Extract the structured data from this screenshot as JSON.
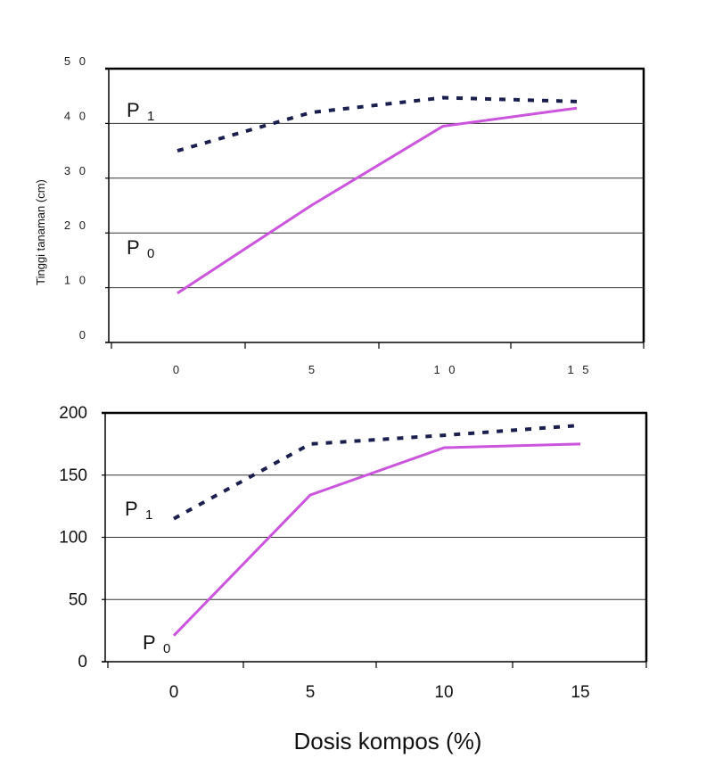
{
  "chart_data": [
    {
      "type": "line",
      "categories": [
        "0",
        "5",
        "10",
        "15"
      ],
      "ylabel": "Tinggi tanaman (cm)",
      "ylim": [
        0,
        50
      ],
      "yticks": [
        "0",
        "1 0",
        "2 0",
        "3 0",
        "4 0",
        "5 0"
      ],
      "xticks": [
        "0",
        "5",
        "1 0",
        "1 5"
      ],
      "grid": true,
      "series": [
        {
          "name": "P1",
          "base": "P",
          "sub": "1",
          "style": "dashed",
          "color": "#1a1f4d",
          "values": [
            35,
            42,
            44.7,
            44
          ]
        },
        {
          "name": "P0",
          "base": "P",
          "sub": "0",
          "style": "solid",
          "color": "#cc55dd",
          "values": [
            9,
            25,
            39.5,
            42.8
          ]
        }
      ]
    },
    {
      "type": "line",
      "categories": [
        "0",
        "5",
        "10",
        "15"
      ],
      "xlabel": "Dosis kompos (%)",
      "ylim": [
        0,
        200
      ],
      "yticks": [
        "0",
        "50",
        "100",
        "150",
        "200"
      ],
      "xticks": [
        "0",
        "5",
        "10",
        "15"
      ],
      "grid": true,
      "series": [
        {
          "name": "P1",
          "base": "P",
          "sub": "1",
          "style": "dashed",
          "color": "#1a1f4d",
          "values": [
            115,
            175,
            182,
            190
          ]
        },
        {
          "name": "P0",
          "base": "P",
          "sub": "0",
          "style": "solid",
          "color": "#cc55dd",
          "values": [
            21,
            134,
            172,
            175
          ]
        }
      ]
    }
  ]
}
